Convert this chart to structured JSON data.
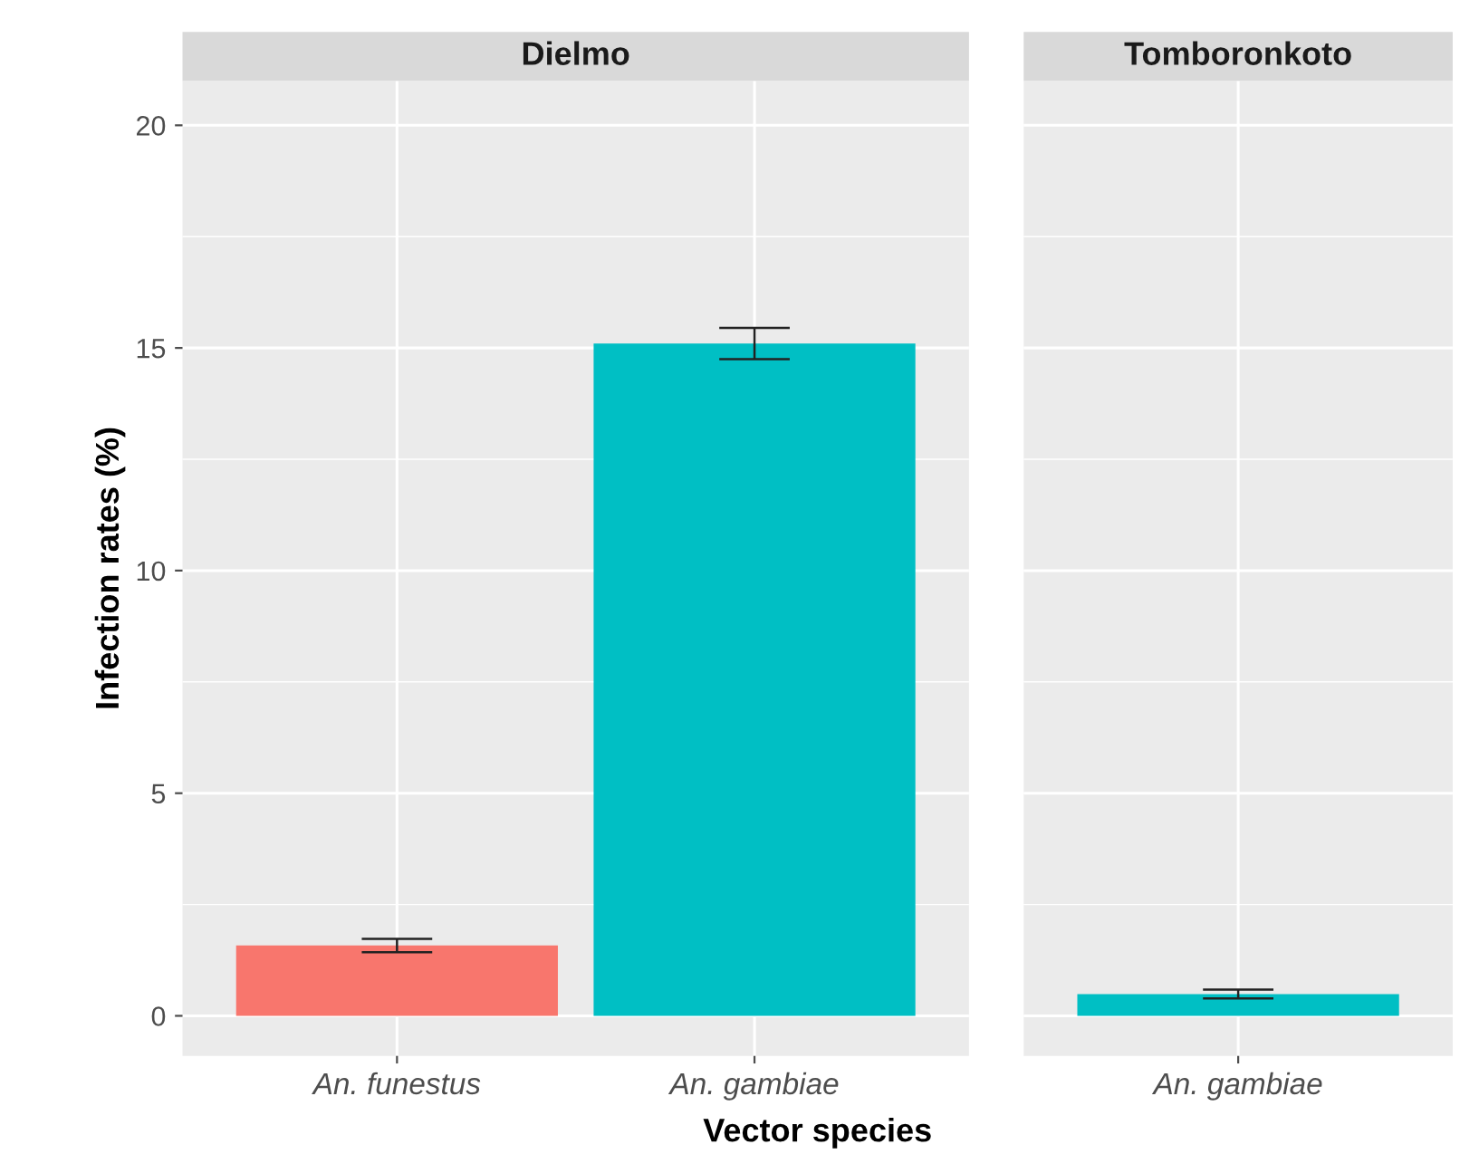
{
  "chart_data": [
    {
      "type": "bar",
      "title": "Dielmo",
      "xlabel": "Vector species",
      "ylabel": "Infection rates (%)",
      "categories": [
        "An. funestus",
        "An. gambiae"
      ],
      "values": [
        1.58,
        15.1
      ],
      "colors": [
        "#f8766d",
        "#00bfc4"
      ],
      "errors": [
        0.15,
        0.35
      ],
      "ylim": [
        -0.9,
        21
      ],
      "yticks": [
        0,
        5,
        10,
        15,
        20
      ],
      "grid": true
    },
    {
      "type": "bar",
      "title": "Tomboronkoto",
      "categories": [
        "An. gambiae"
      ],
      "values": [
        0.49
      ],
      "colors": [
        "#00bfc4"
      ],
      "errors": [
        0.1
      ],
      "ylim": [
        -0.9,
        21
      ],
      "yticks": [
        0,
        5,
        10,
        15,
        20
      ],
      "grid": true,
      "tick_labels": "x"
    }
  ]
}
